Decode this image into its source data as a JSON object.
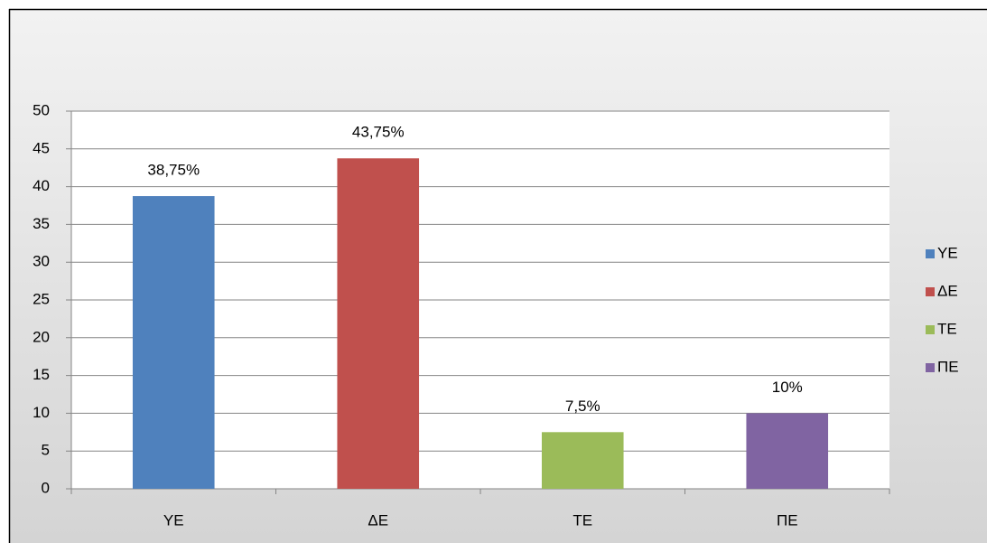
{
  "chart_data": {
    "type": "bar",
    "categories": [
      "YE",
      "ΔΕ",
      "TE",
      "ΠΕ"
    ],
    "values": [
      38.75,
      43.75,
      7.5,
      10
    ],
    "value_labels": [
      "38,75%",
      "43,75%",
      "7,5%",
      "10%"
    ],
    "colors": [
      "#4f81bd",
      "#c0504d",
      "#9bbb59",
      "#8064a2"
    ],
    "ylim": [
      0,
      50
    ],
    "yticks": [
      0,
      5,
      10,
      15,
      20,
      25,
      30,
      35,
      40,
      45,
      50
    ],
    "grid": true,
    "legend": "right"
  }
}
